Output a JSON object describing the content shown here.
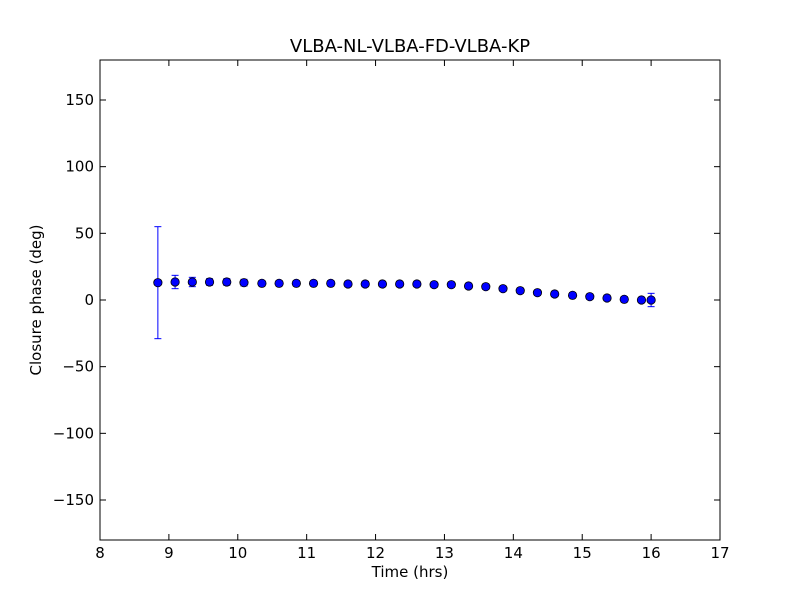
{
  "chart_data": {
    "type": "scatter",
    "title": "VLBA-NL-VLBA-FD-VLBA-KP",
    "xlabel": "Time (hrs)",
    "ylabel": "Closure phase (deg)",
    "xlim": [
      8,
      17
    ],
    "ylim": [
      -180,
      180
    ],
    "xticks": [
      8,
      9,
      10,
      11,
      12,
      13,
      14,
      15,
      16,
      17
    ],
    "yticks": [
      -150,
      -100,
      -50,
      0,
      50,
      100,
      150
    ],
    "xtick_labels": [
      "8",
      "9",
      "10",
      "11",
      "12",
      "13",
      "14",
      "15",
      "16",
      "17"
    ],
    "ytick_labels": [
      "−150",
      "−100",
      "−50",
      "0",
      "50",
      "100",
      "150"
    ],
    "grid": false,
    "marker_color": "#0000ff",
    "errorbar_color": "#0000ff",
    "series": [
      {
        "x": [
          8.84,
          9.09,
          9.34,
          9.59,
          9.84,
          10.09,
          10.35,
          10.6,
          10.85,
          11.1,
          11.35,
          11.6,
          11.85,
          12.1,
          12.35,
          12.6,
          12.85,
          13.1,
          13.35,
          13.6,
          13.85,
          14.1,
          14.35,
          14.6,
          14.86,
          15.11,
          15.36,
          15.61,
          15.86,
          16.0
        ],
        "y": [
          13,
          13.5,
          13.5,
          13.5,
          13.5,
          13,
          12.5,
          12.5,
          12.5,
          12.5,
          12.5,
          12,
          12,
          12,
          12,
          12,
          11.5,
          11.5,
          10.5,
          10,
          8.5,
          7,
          5.5,
          4.5,
          3.5,
          2.5,
          1.5,
          0.5,
          0,
          0
        ],
        "yerr": [
          42,
          5,
          3.5,
          2.5,
          2.5,
          2.5,
          2,
          2,
          2,
          2,
          2,
          2,
          2,
          2,
          2,
          2,
          2,
          2,
          2,
          2,
          2,
          2,
          2,
          2,
          2,
          2,
          2,
          2,
          2,
          5
        ]
      }
    ]
  }
}
